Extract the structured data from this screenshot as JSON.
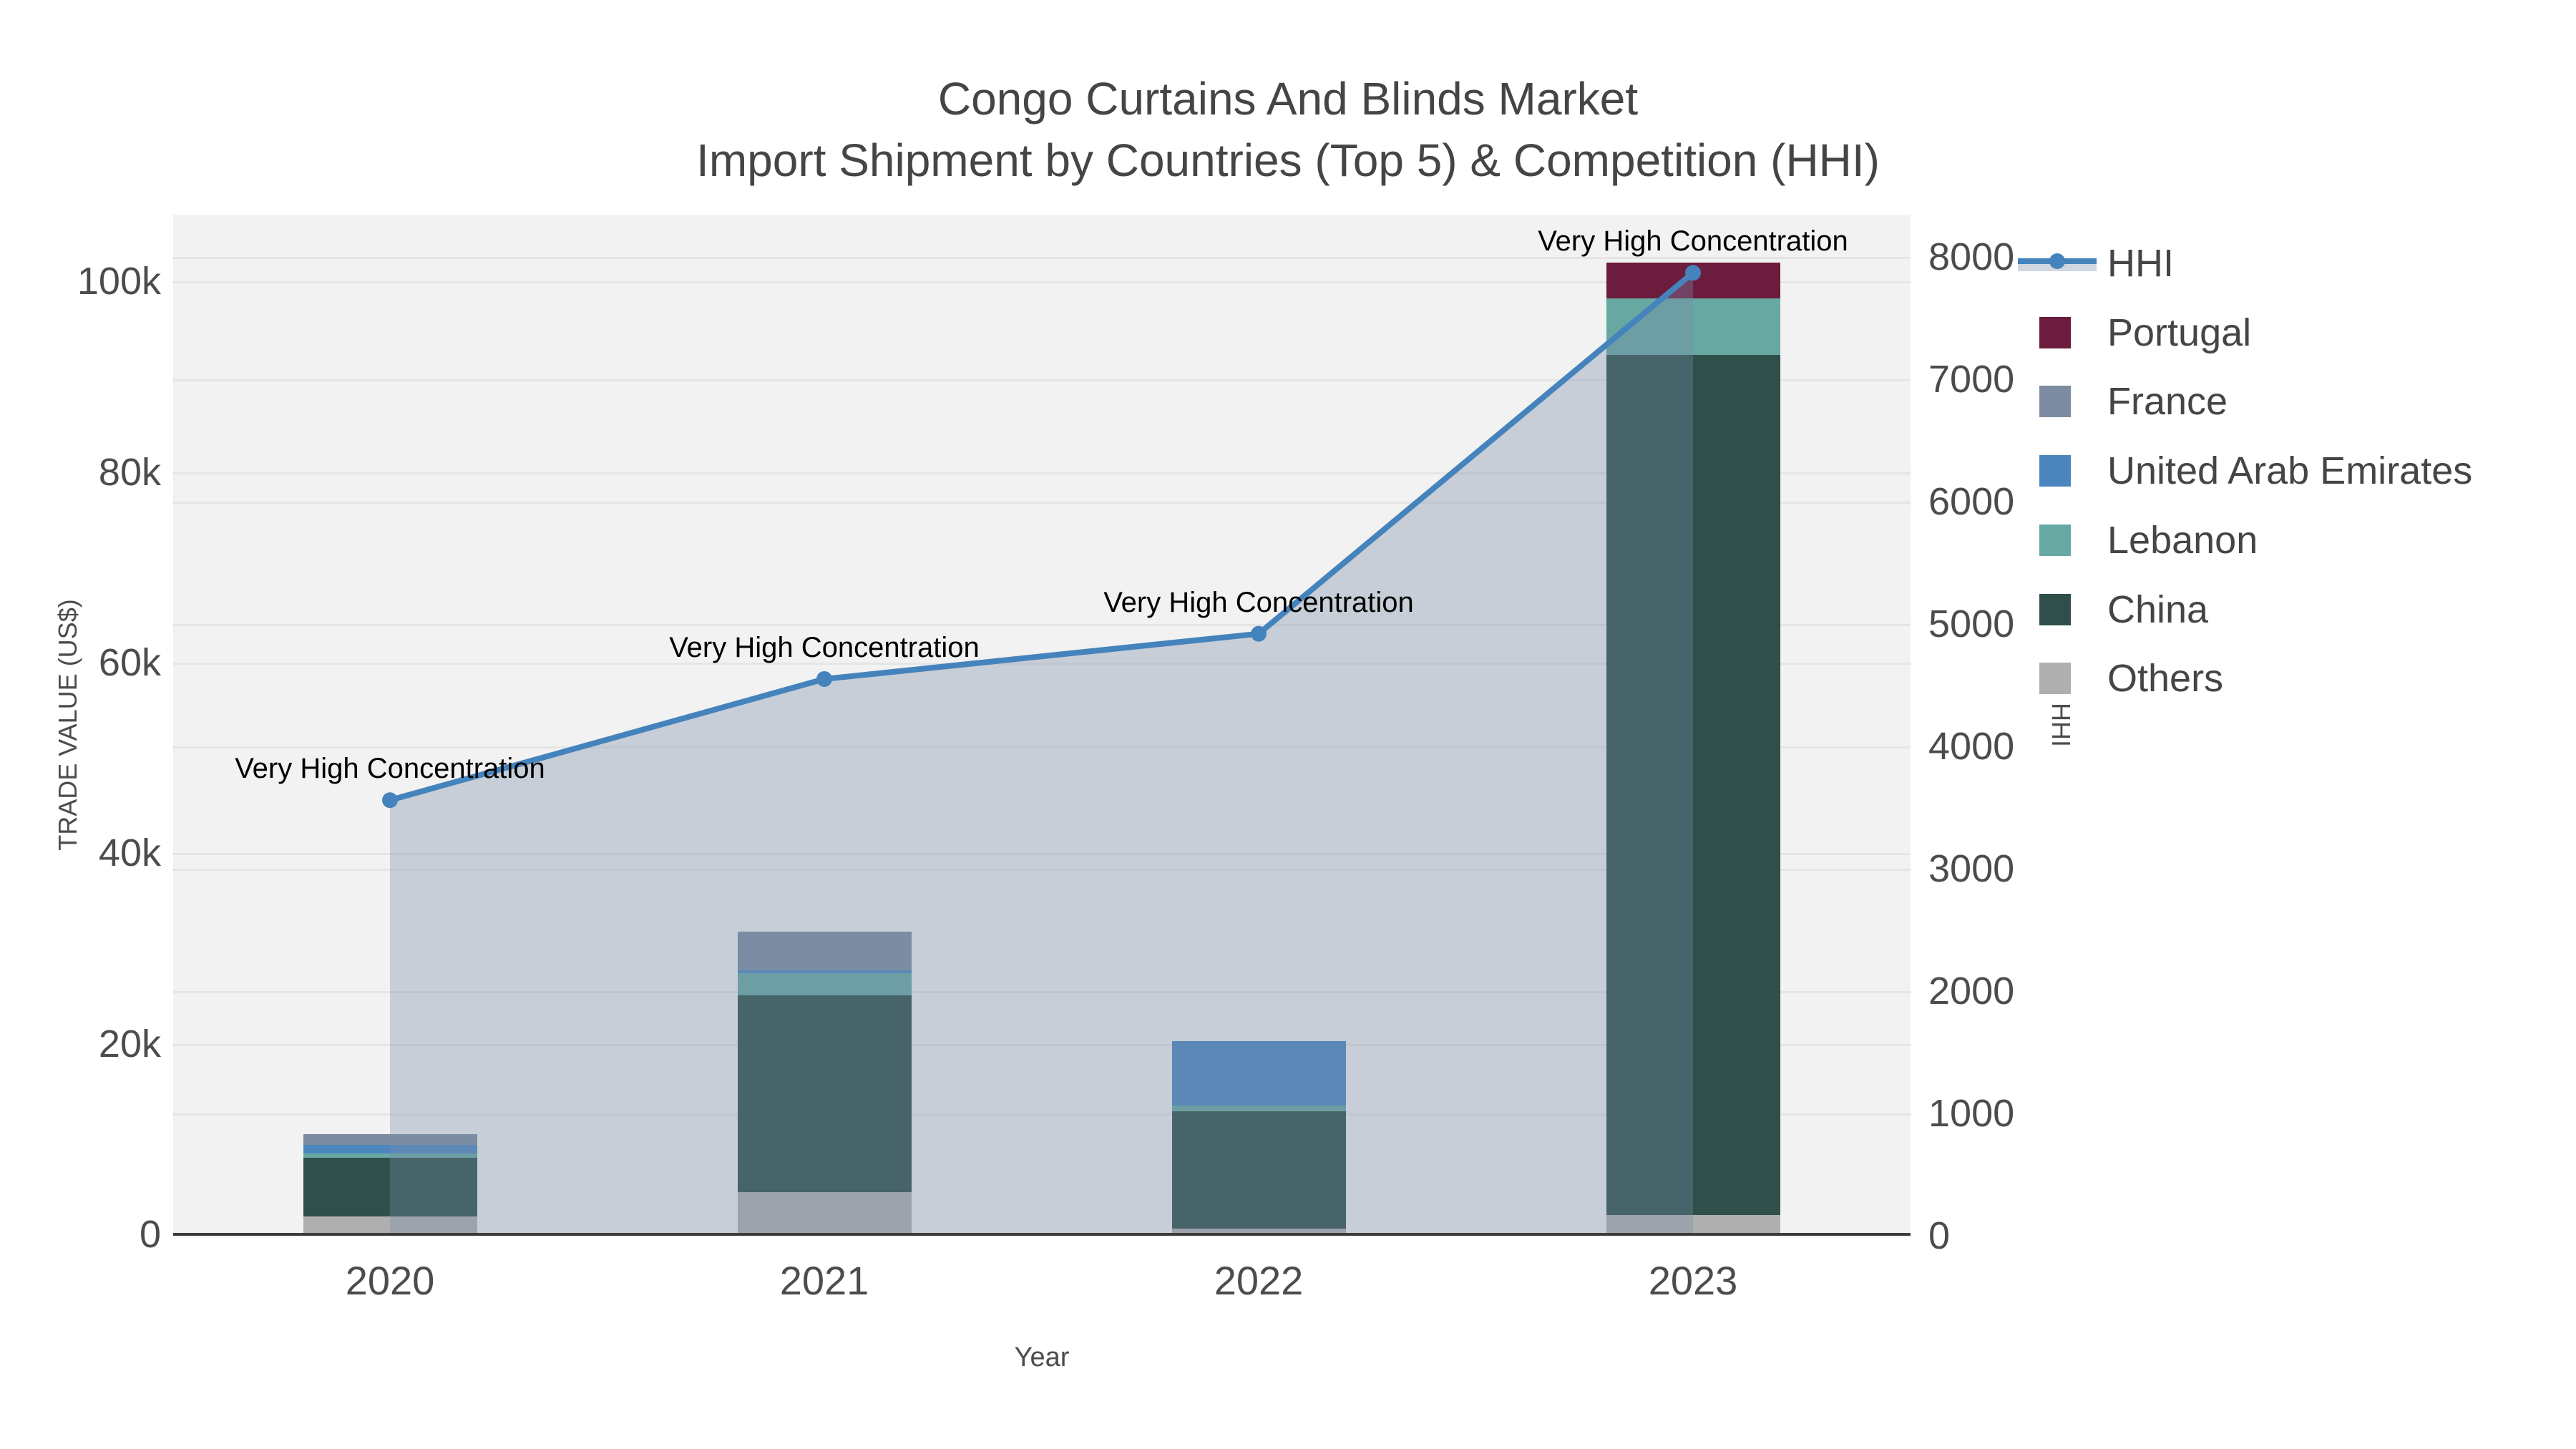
{
  "title": {
    "line1": "Congo Curtains And Blinds Market",
    "line2": "Import Shipment by Countries (Top 5) & Competition (HHI)"
  },
  "axes": {
    "x_title": "Year",
    "y_left_title": "TRADE VALUE (US$)",
    "y_right_title": "HHI",
    "x_tick_labels": [
      "2020",
      "2021",
      "2022",
      "2023"
    ],
    "y_left_ticks": [
      {
        "label": "0",
        "value": 0
      },
      {
        "label": "20k",
        "value": 20000
      },
      {
        "label": "40k",
        "value": 40000
      },
      {
        "label": "60k",
        "value": 60000
      },
      {
        "label": "80k",
        "value": 80000
      },
      {
        "label": "100k",
        "value": 100000
      }
    ],
    "y_right_ticks": [
      {
        "label": "0",
        "value": 0
      },
      {
        "label": "1000",
        "value": 1000
      },
      {
        "label": "2000",
        "value": 2000
      },
      {
        "label": "3000",
        "value": 3000
      },
      {
        "label": "4000",
        "value": 4000
      },
      {
        "label": "5000",
        "value": 5000
      },
      {
        "label": "6000",
        "value": 6000
      },
      {
        "label": "7000",
        "value": 7000
      },
      {
        "label": "8000",
        "value": 8000
      }
    ]
  },
  "legend": [
    {
      "label": "HHI",
      "type": "line",
      "color": "#4583BC"
    },
    {
      "label": "Portugal",
      "type": "swatch",
      "color": "#6C1C3D"
    },
    {
      "label": "France",
      "type": "swatch",
      "color": "#7D8CA0"
    },
    {
      "label": "United Arab Emirates",
      "type": "swatch",
      "color": "#4C86BE"
    },
    {
      "label": "Lebanon",
      "type": "swatch",
      "color": "#68A8A2"
    },
    {
      "label": "China",
      "type": "swatch",
      "color": "#2F4F4A"
    },
    {
      "label": "Others",
      "type": "swatch",
      "color": "#AFAFAF"
    }
  ],
  "annotation_text": "Very High Concentration",
  "colors": {
    "plot_background": "#F2F2F2",
    "gridline": "#E5E5E5",
    "axis_line": "#3C3C3C",
    "hhi_line": "#4583BC",
    "hhi_area_fill": "rgba(120,140,168,0.35)",
    "portugal": "#6C1C3D",
    "france": "#7D8CA0",
    "united_arab_emirates": "#4C86BE",
    "lebanon": "#68A8A2",
    "china": "#2F4F4A",
    "others": "#AFAFAF",
    "annotation_text_color": "#000000",
    "tick_text_color": "#4C4C4C"
  },
  "chart_data": [
    {
      "type": "bar",
      "stacked": true,
      "categories": [
        "2020",
        "2021",
        "2022",
        "2023"
      ],
      "stack_order_bottom_to_top": [
        "Others",
        "China",
        "Lebanon",
        "United Arab Emirates",
        "France",
        "Portugal"
      ],
      "series": [
        {
          "name": "Others",
          "color": "#AFAFAF",
          "values": [
            1900,
            4400,
            600,
            2000
          ]
        },
        {
          "name": "China",
          "color": "#2F4F4A",
          "values": [
            6100,
            20700,
            12300,
            90300
          ]
        },
        {
          "name": "Lebanon",
          "color": "#68A8A2",
          "values": [
            500,
            2300,
            600,
            5900
          ]
        },
        {
          "name": "United Arab Emirates",
          "color": "#4C86BE",
          "values": [
            900,
            300,
            6800,
            0
          ]
        },
        {
          "name": "France",
          "color": "#7D8CA0",
          "values": [
            1100,
            4100,
            0,
            0
          ]
        },
        {
          "name": "Portugal",
          "color": "#6C1C3D",
          "values": [
            0,
            0,
            0,
            3800
          ]
        }
      ],
      "totals": [
        10500,
        31800,
        20300,
        102000
      ],
      "xlabel": "Year",
      "ylabel": "TRADE VALUE (US$)",
      "ylim": [
        0,
        107000
      ],
      "grid": true
    },
    {
      "type": "line",
      "name": "HHI",
      "x": [
        "2020",
        "2021",
        "2022",
        "2023"
      ],
      "values": [
        3560,
        4550,
        4920,
        7870
      ],
      "axis": "right",
      "ylabel": "HHI",
      "ylim": [
        0,
        8000
      ],
      "area_fill": true,
      "markers": true,
      "point_annotations": [
        "Very High Concentration",
        "Very High Concentration",
        "Very High Concentration",
        "Very High Concentration"
      ]
    }
  ]
}
